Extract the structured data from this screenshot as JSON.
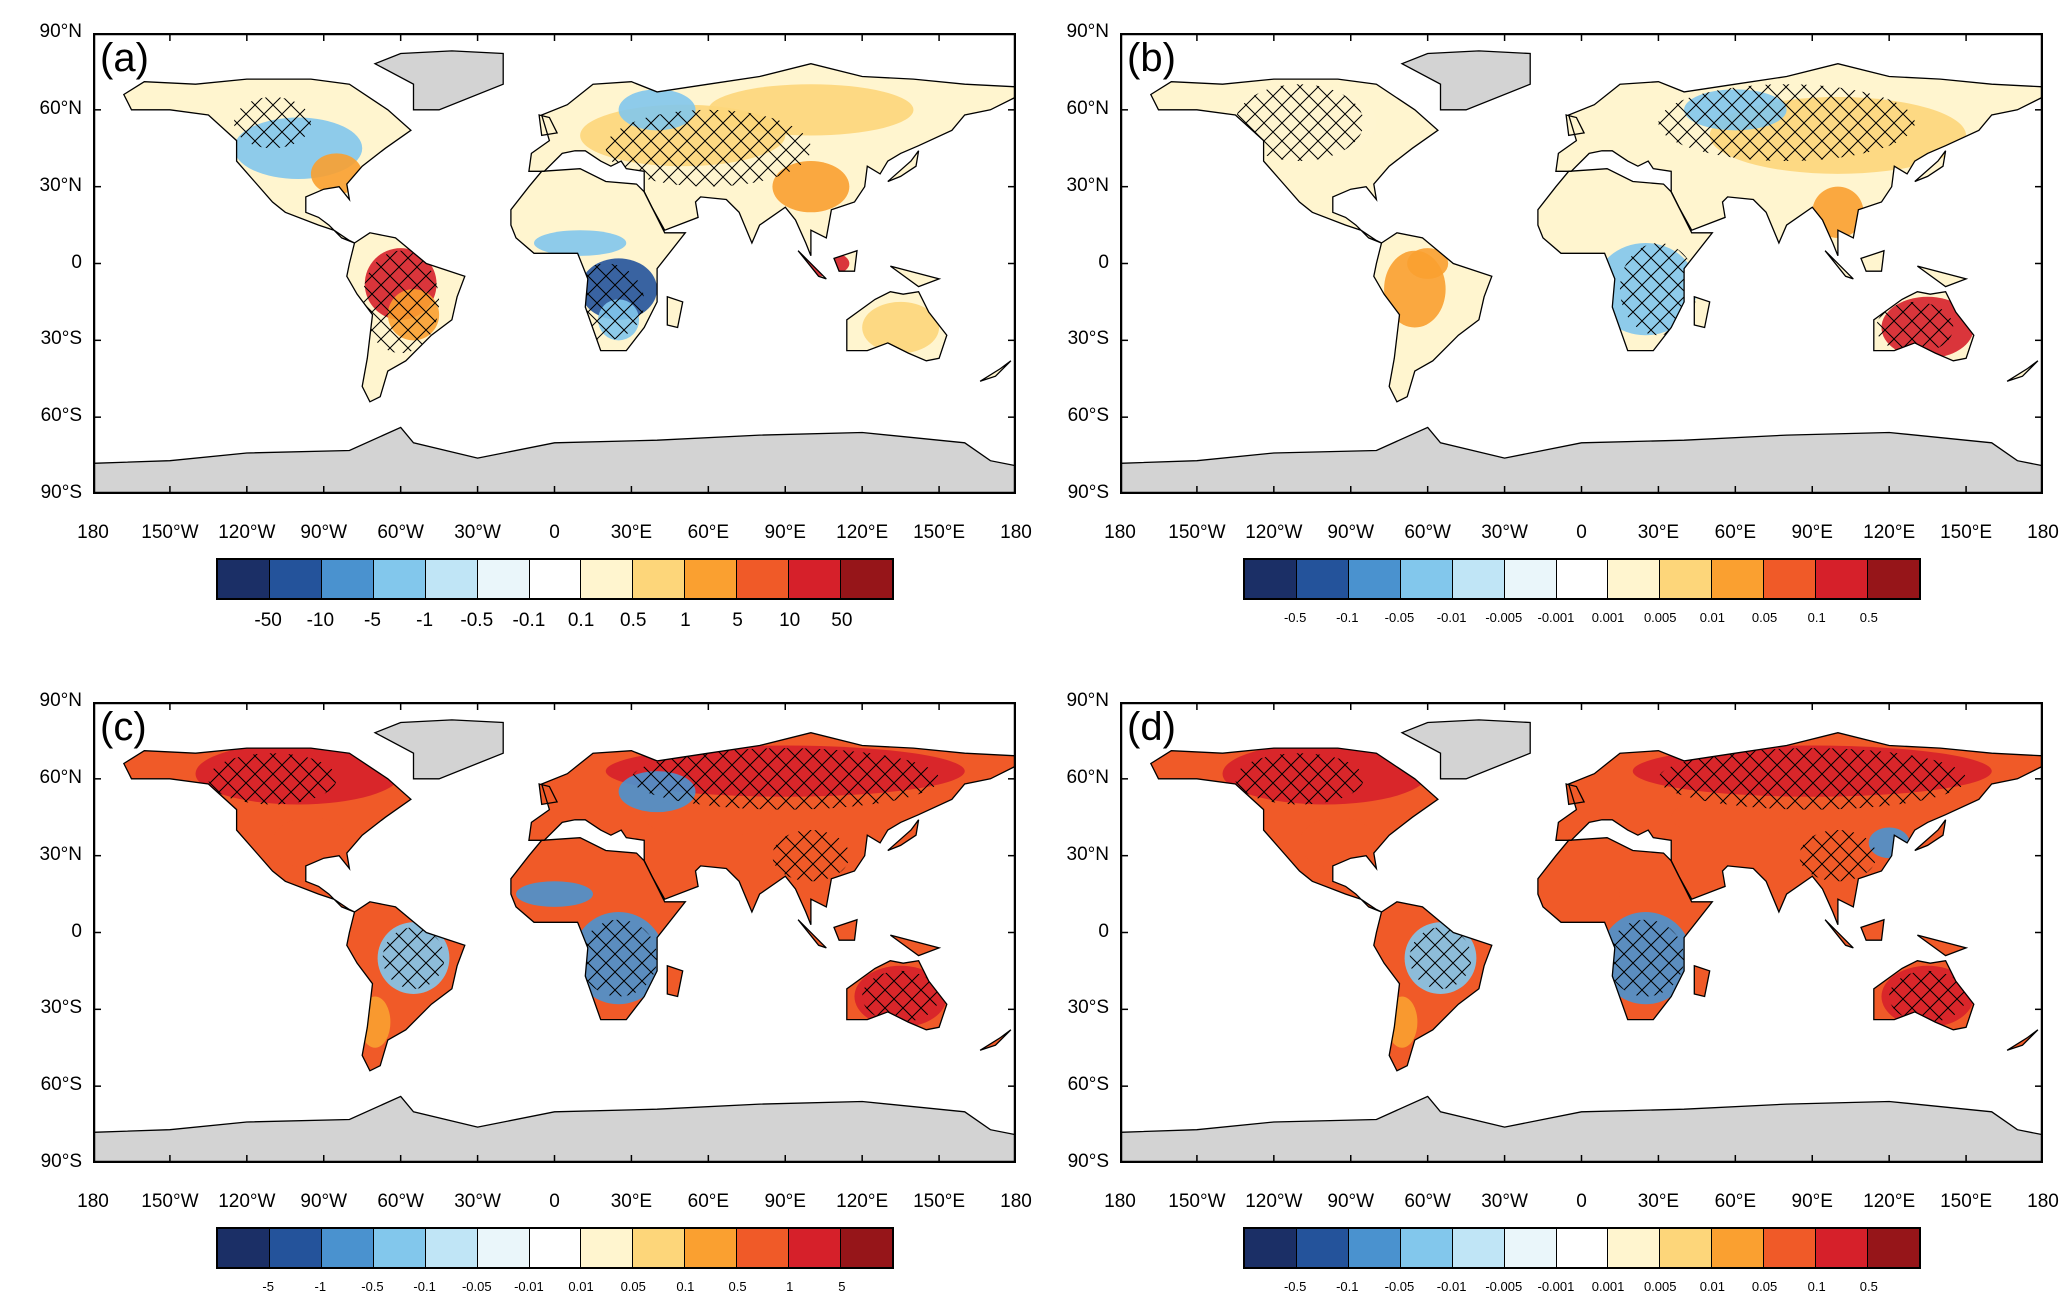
{
  "lat_labels": [
    "90°N",
    "60°N",
    "30°N",
    "0",
    "30°S",
    "60°S",
    "90°S"
  ],
  "lon_labels": [
    "180",
    "150°W",
    "120°W",
    "90°W",
    "60°W",
    "30°W",
    "0",
    "30°E",
    "60°E",
    "90°E",
    "120°E",
    "150°E",
    "180"
  ],
  "colorbar_colors": [
    "#1b2f66",
    "#24539b",
    "#4a92cf",
    "#82c7ec",
    "#c0e5f6",
    "#eaf6fa",
    "#ffffff",
    "#fff5cf",
    "#fdd67a",
    "#faa030",
    "#f05a28",
    "#d6202a",
    "#961519"
  ],
  "panels": [
    {
      "label": "(a)",
      "colorbar_labels": [
        "-50",
        "-10",
        "-5",
        "-1",
        "-0.5",
        "-0.1",
        "0.1",
        "0.5",
        "1",
        "5",
        "10",
        "50"
      ]
    },
    {
      "label": "(b)",
      "colorbar_labels": [
        "-0.5",
        "-0.1",
        "-0.05",
        "-0.01",
        "-0.005",
        "-0.001",
        "0.001",
        "0.005",
        "0.01",
        "0.05",
        "0.1",
        "0.5"
      ]
    },
    {
      "label": "(c)",
      "colorbar_labels": [
        "-5",
        "-1",
        "-0.5",
        "-0.1",
        "-0.05",
        "-0.01",
        "0.01",
        "0.05",
        "0.1",
        "0.5",
        "1",
        "5"
      ]
    },
    {
      "label": "(d)",
      "colorbar_labels": [
        "-0.5",
        "-0.1",
        "-0.05",
        "-0.01",
        "-0.005",
        "-0.001",
        "0.001",
        "0.005",
        "0.01",
        "0.05",
        "0.1",
        "0.5"
      ]
    }
  ]
}
